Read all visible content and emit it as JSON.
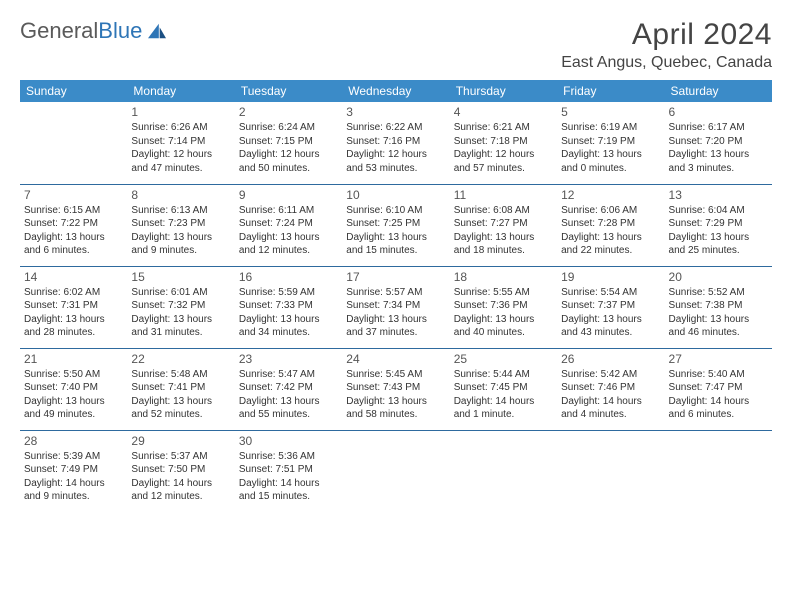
{
  "brand": {
    "part1": "General",
    "part2": "Blue"
  },
  "title": "April 2024",
  "location": "East Angus, Quebec, Canada",
  "colors": {
    "header_bg": "#3b8bc8",
    "header_text": "#ffffff",
    "rule": "#2e6a9e",
    "body_text": "#333333",
    "brand_grey": "#5a5a5a",
    "brand_blue": "#2e75b6"
  },
  "weekdays": [
    "Sunday",
    "Monday",
    "Tuesday",
    "Wednesday",
    "Thursday",
    "Friday",
    "Saturday"
  ],
  "weeks": [
    [
      null,
      {
        "n": "1",
        "sr": "Sunrise: 6:26 AM",
        "ss": "Sunset: 7:14 PM",
        "d1": "Daylight: 12 hours",
        "d2": "and 47 minutes."
      },
      {
        "n": "2",
        "sr": "Sunrise: 6:24 AM",
        "ss": "Sunset: 7:15 PM",
        "d1": "Daylight: 12 hours",
        "d2": "and 50 minutes."
      },
      {
        "n": "3",
        "sr": "Sunrise: 6:22 AM",
        "ss": "Sunset: 7:16 PM",
        "d1": "Daylight: 12 hours",
        "d2": "and 53 minutes."
      },
      {
        "n": "4",
        "sr": "Sunrise: 6:21 AM",
        "ss": "Sunset: 7:18 PM",
        "d1": "Daylight: 12 hours",
        "d2": "and 57 minutes."
      },
      {
        "n": "5",
        "sr": "Sunrise: 6:19 AM",
        "ss": "Sunset: 7:19 PM",
        "d1": "Daylight: 13 hours",
        "d2": "and 0 minutes."
      },
      {
        "n": "6",
        "sr": "Sunrise: 6:17 AM",
        "ss": "Sunset: 7:20 PM",
        "d1": "Daylight: 13 hours",
        "d2": "and 3 minutes."
      }
    ],
    [
      {
        "n": "7",
        "sr": "Sunrise: 6:15 AM",
        "ss": "Sunset: 7:22 PM",
        "d1": "Daylight: 13 hours",
        "d2": "and 6 minutes."
      },
      {
        "n": "8",
        "sr": "Sunrise: 6:13 AM",
        "ss": "Sunset: 7:23 PM",
        "d1": "Daylight: 13 hours",
        "d2": "and 9 minutes."
      },
      {
        "n": "9",
        "sr": "Sunrise: 6:11 AM",
        "ss": "Sunset: 7:24 PM",
        "d1": "Daylight: 13 hours",
        "d2": "and 12 minutes."
      },
      {
        "n": "10",
        "sr": "Sunrise: 6:10 AM",
        "ss": "Sunset: 7:25 PM",
        "d1": "Daylight: 13 hours",
        "d2": "and 15 minutes."
      },
      {
        "n": "11",
        "sr": "Sunrise: 6:08 AM",
        "ss": "Sunset: 7:27 PM",
        "d1": "Daylight: 13 hours",
        "d2": "and 18 minutes."
      },
      {
        "n": "12",
        "sr": "Sunrise: 6:06 AM",
        "ss": "Sunset: 7:28 PM",
        "d1": "Daylight: 13 hours",
        "d2": "and 22 minutes."
      },
      {
        "n": "13",
        "sr": "Sunrise: 6:04 AM",
        "ss": "Sunset: 7:29 PM",
        "d1": "Daylight: 13 hours",
        "d2": "and 25 minutes."
      }
    ],
    [
      {
        "n": "14",
        "sr": "Sunrise: 6:02 AM",
        "ss": "Sunset: 7:31 PM",
        "d1": "Daylight: 13 hours",
        "d2": "and 28 minutes."
      },
      {
        "n": "15",
        "sr": "Sunrise: 6:01 AM",
        "ss": "Sunset: 7:32 PM",
        "d1": "Daylight: 13 hours",
        "d2": "and 31 minutes."
      },
      {
        "n": "16",
        "sr": "Sunrise: 5:59 AM",
        "ss": "Sunset: 7:33 PM",
        "d1": "Daylight: 13 hours",
        "d2": "and 34 minutes."
      },
      {
        "n": "17",
        "sr": "Sunrise: 5:57 AM",
        "ss": "Sunset: 7:34 PM",
        "d1": "Daylight: 13 hours",
        "d2": "and 37 minutes."
      },
      {
        "n": "18",
        "sr": "Sunrise: 5:55 AM",
        "ss": "Sunset: 7:36 PM",
        "d1": "Daylight: 13 hours",
        "d2": "and 40 minutes."
      },
      {
        "n": "19",
        "sr": "Sunrise: 5:54 AM",
        "ss": "Sunset: 7:37 PM",
        "d1": "Daylight: 13 hours",
        "d2": "and 43 minutes."
      },
      {
        "n": "20",
        "sr": "Sunrise: 5:52 AM",
        "ss": "Sunset: 7:38 PM",
        "d1": "Daylight: 13 hours",
        "d2": "and 46 minutes."
      }
    ],
    [
      {
        "n": "21",
        "sr": "Sunrise: 5:50 AM",
        "ss": "Sunset: 7:40 PM",
        "d1": "Daylight: 13 hours",
        "d2": "and 49 minutes."
      },
      {
        "n": "22",
        "sr": "Sunrise: 5:48 AM",
        "ss": "Sunset: 7:41 PM",
        "d1": "Daylight: 13 hours",
        "d2": "and 52 minutes."
      },
      {
        "n": "23",
        "sr": "Sunrise: 5:47 AM",
        "ss": "Sunset: 7:42 PM",
        "d1": "Daylight: 13 hours",
        "d2": "and 55 minutes."
      },
      {
        "n": "24",
        "sr": "Sunrise: 5:45 AM",
        "ss": "Sunset: 7:43 PM",
        "d1": "Daylight: 13 hours",
        "d2": "and 58 minutes."
      },
      {
        "n": "25",
        "sr": "Sunrise: 5:44 AM",
        "ss": "Sunset: 7:45 PM",
        "d1": "Daylight: 14 hours",
        "d2": "and 1 minute."
      },
      {
        "n": "26",
        "sr": "Sunrise: 5:42 AM",
        "ss": "Sunset: 7:46 PM",
        "d1": "Daylight: 14 hours",
        "d2": "and 4 minutes."
      },
      {
        "n": "27",
        "sr": "Sunrise: 5:40 AM",
        "ss": "Sunset: 7:47 PM",
        "d1": "Daylight: 14 hours",
        "d2": "and 6 minutes."
      }
    ],
    [
      {
        "n": "28",
        "sr": "Sunrise: 5:39 AM",
        "ss": "Sunset: 7:49 PM",
        "d1": "Daylight: 14 hours",
        "d2": "and 9 minutes."
      },
      {
        "n": "29",
        "sr": "Sunrise: 5:37 AM",
        "ss": "Sunset: 7:50 PM",
        "d1": "Daylight: 14 hours",
        "d2": "and 12 minutes."
      },
      {
        "n": "30",
        "sr": "Sunrise: 5:36 AM",
        "ss": "Sunset: 7:51 PM",
        "d1": "Daylight: 14 hours",
        "d2": "and 15 minutes."
      },
      null,
      null,
      null,
      null
    ]
  ]
}
